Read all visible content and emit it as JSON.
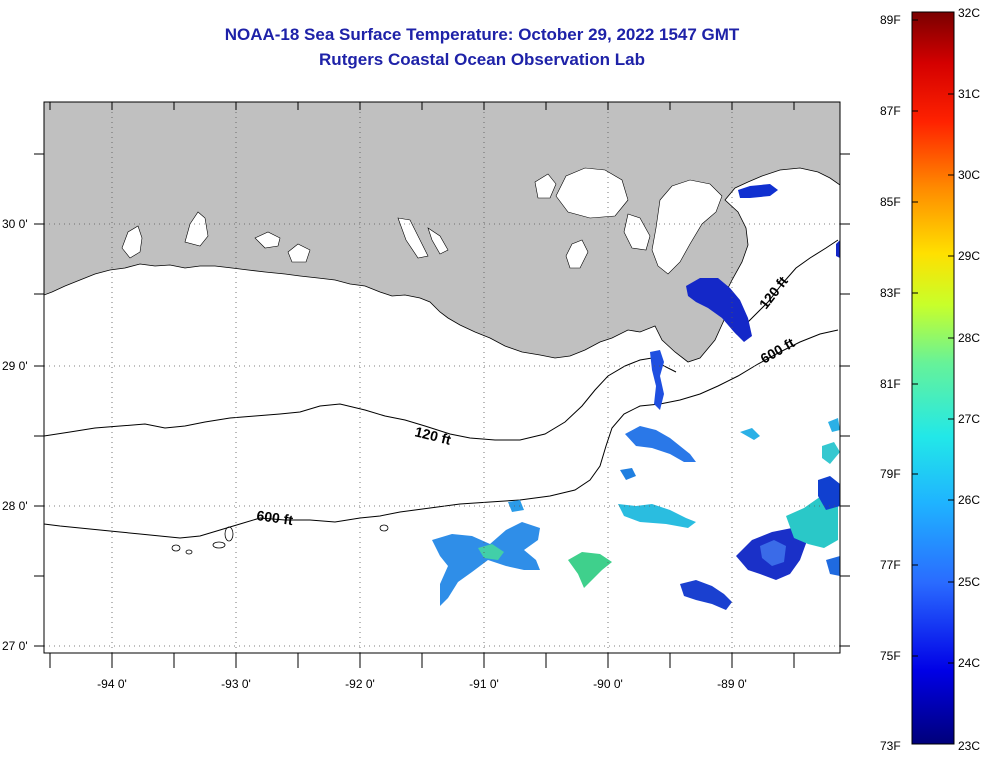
{
  "title": {
    "line1": "NOAA-18 Sea Surface Temperature:  October 29, 2022 1547 GMT",
    "line2": "Rutgers Coastal Ocean Observation Lab"
  },
  "map": {
    "lon_labels": [
      "-94 0'",
      "-93 0'",
      "-92 0'",
      "-91 0'",
      "-90 0'",
      "-89 0'"
    ],
    "lat_labels": [
      "30 0'",
      "29 0'",
      "28 0'",
      "27 0'"
    ],
    "contour_labels": {
      "c120_west": "120 ft",
      "c600_west": "600 ft",
      "c120_east": "120 ft",
      "c600_east": "600 ft"
    },
    "land_color": "#c0c0c0"
  },
  "colorbar": {
    "f_labels": [
      "89F",
      "87F",
      "85F",
      "83F",
      "81F",
      "79F",
      "77F",
      "75F",
      "73F"
    ],
    "c_labels": [
      "32C",
      "31C",
      "30C",
      "29C",
      "28C",
      "27C",
      "26C",
      "25C",
      "24C",
      "23C"
    ]
  }
}
